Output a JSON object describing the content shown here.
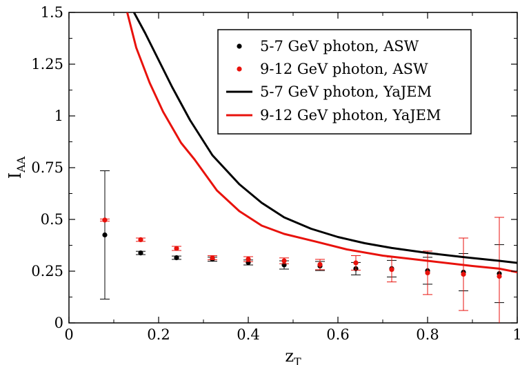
{
  "chart_data": {
    "type": "scatter",
    "title": "",
    "xlabel": "z_T",
    "ylabel": "I_AA",
    "xlim": [
      0,
      1
    ],
    "ylim": [
      0,
      1.5
    ],
    "x_ticks": [
      "0",
      "0.2",
      "0.4",
      "0.6",
      "0.8",
      "1"
    ],
    "y_ticks": [
      "0",
      "0.25",
      "0.5",
      "0.75",
      "1",
      "1.25",
      "1.5"
    ],
    "grid": false,
    "legend_position": "top-right",
    "series": [
      {
        "name": "5-7 GeV photon, ASW",
        "kind": "points",
        "color": "#000000",
        "x": [
          0.08,
          0.16,
          0.24,
          0.32,
          0.4,
          0.48,
          0.56,
          0.64,
          0.72,
          0.8,
          0.88,
          0.96
        ],
        "y": [
          0.425,
          0.338,
          0.315,
          0.308,
          0.292,
          0.28,
          0.275,
          0.262,
          0.262,
          0.252,
          0.245,
          0.238
        ],
        "yerr": [
          0.31,
          0.008,
          0.008,
          0.01,
          0.012,
          0.02,
          0.022,
          0.03,
          0.04,
          0.065,
          0.09,
          0.14
        ]
      },
      {
        "name": "9-12 GeV photon, ASW",
        "kind": "points",
        "color": "#e8120c",
        "x": [
          0.08,
          0.16,
          0.24,
          0.32,
          0.4,
          0.48,
          0.56,
          0.64,
          0.72,
          0.8,
          0.88,
          0.96
        ],
        "y": [
          0.497,
          0.402,
          0.36,
          0.315,
          0.308,
          0.3,
          0.282,
          0.29,
          0.258,
          0.242,
          0.235,
          0.225
        ],
        "yerr": [
          0.005,
          0.008,
          0.01,
          0.01,
          0.012,
          0.014,
          0.025,
          0.035,
          0.06,
          0.105,
          0.175,
          0.285
        ]
      },
      {
        "name": "5-7 GeV photon, YaJEM",
        "kind": "line",
        "color": "#000000",
        "x": [
          0.145,
          0.17,
          0.2,
          0.23,
          0.27,
          0.32,
          0.38,
          0.43,
          0.48,
          0.54,
          0.6,
          0.66,
          0.72,
          0.8,
          0.88,
          0.96,
          1.0
        ],
        "y": [
          1.5,
          1.4,
          1.27,
          1.14,
          0.98,
          0.81,
          0.67,
          0.58,
          0.51,
          0.455,
          0.415,
          0.385,
          0.362,
          0.338,
          0.318,
          0.3,
          0.29
        ]
      },
      {
        "name": "9-12 GeV photon, YaJEM",
        "kind": "line",
        "color": "#e8120c",
        "x": [
          0.13,
          0.15,
          0.18,
          0.21,
          0.25,
          0.28,
          0.33,
          0.38,
          0.43,
          0.48,
          0.55,
          0.62,
          0.7,
          0.8,
          0.9,
          0.96,
          1.0
        ],
        "y": [
          1.5,
          1.33,
          1.16,
          1.02,
          0.87,
          0.79,
          0.64,
          0.54,
          0.47,
          0.43,
          0.393,
          0.355,
          0.325,
          0.3,
          0.275,
          0.262,
          0.245
        ]
      }
    ]
  }
}
